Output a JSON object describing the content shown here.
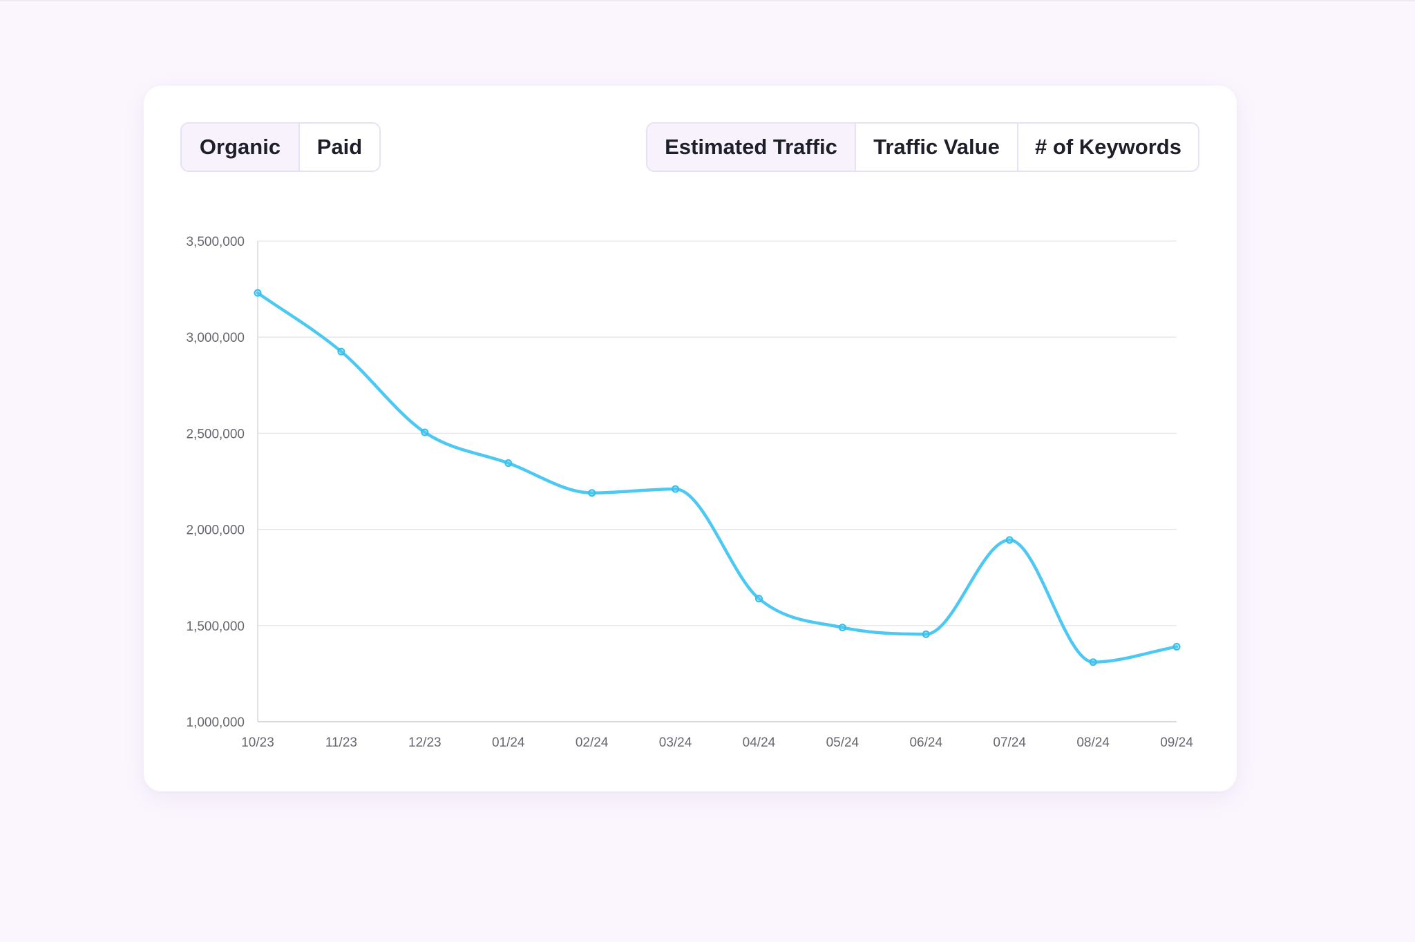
{
  "toggles": {
    "source": [
      {
        "label": "Organic",
        "active": true
      },
      {
        "label": "Paid",
        "active": false
      }
    ],
    "metric": [
      {
        "label": "Estimated Traffic",
        "active": true
      },
      {
        "label": "Traffic Value",
        "active": false
      },
      {
        "label": "# of Keywords",
        "active": false
      }
    ]
  },
  "colors": {
    "line": "#4cc8f2",
    "page_background": "#fbf6fe",
    "grid": "#e6e6e6"
  },
  "chart_data": {
    "type": "line",
    "title": "",
    "xlabel": "",
    "ylabel": "",
    "categories": [
      "10/23",
      "11/23",
      "12/23",
      "01/24",
      "02/24",
      "03/24",
      "04/24",
      "05/24",
      "06/24",
      "07/24",
      "08/24",
      "09/24"
    ],
    "series": [
      {
        "values": [
          3230000,
          2925000,
          2505000,
          2345000,
          2190000,
          2210000,
          1640000,
          1490000,
          1455000,
          1945000,
          1310000,
          1390000
        ]
      }
    ],
    "ylim": [
      1000000,
      3500000
    ],
    "yticks": [
      "1,000,000",
      "1,500,000",
      "2,000,000",
      "2,500,000",
      "3,000,000",
      "3,500,000"
    ],
    "ytick_values": [
      1000000,
      1500000,
      2000000,
      2500000,
      3000000,
      3500000
    ],
    "grid": true,
    "legend": "none",
    "curve": "smooth",
    "markers": true
  }
}
